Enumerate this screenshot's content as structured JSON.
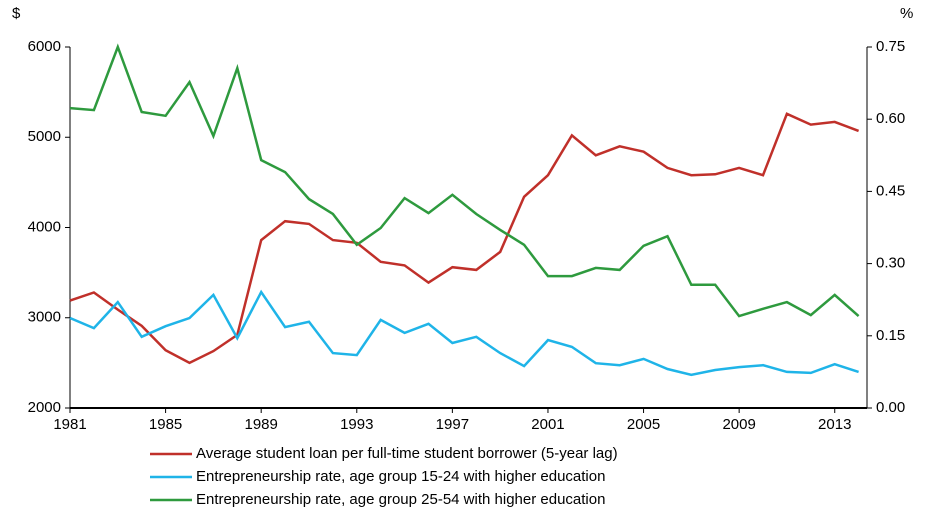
{
  "chart_data": {
    "type": "line",
    "y_unit": "$",
    "y2_unit": "%",
    "x": [
      1981,
      1982,
      1983,
      1984,
      1985,
      1986,
      1987,
      1988,
      1989,
      1990,
      1991,
      1992,
      1993,
      1994,
      1995,
      1996,
      1997,
      1998,
      1999,
      2000,
      2001,
      2002,
      2003,
      2004,
      2005,
      2006,
      2007,
      2008,
      2009,
      2010,
      2011,
      2012,
      2013,
      2014
    ],
    "xlim": [
      1981,
      2014.35
    ],
    "xticks": [
      1981,
      1985,
      1989,
      1993,
      1997,
      2001,
      2005,
      2009,
      2013
    ],
    "ylim": [
      2000,
      6000
    ],
    "yticks": [
      2000,
      3000,
      4000,
      5000,
      6000
    ],
    "y2lim": [
      0,
      0.75
    ],
    "y2ticks": [
      {
        "value": 0,
        "label": "0.00"
      },
      0.15,
      {
        "value": 0.3,
        "label": "0.30"
      },
      0.45,
      {
        "value": 0.6,
        "label": "0.60"
      },
      0.75
    ],
    "series": [
      {
        "name": "Average student loan per full-time student borrower (5-year lag)",
        "color": "#c0302a",
        "axis": "y",
        "values": [
          3190,
          3280,
          3090,
          2910,
          2640,
          2500,
          2630,
          2810,
          3860,
          4070,
          4040,
          3860,
          3830,
          3620,
          3580,
          3390,
          3560,
          3530,
          3730,
          4340,
          4580,
          5020,
          4800,
          4900,
          4840,
          4660,
          4580,
          4590,
          4660,
          4580,
          5260,
          5140,
          5170,
          5070
        ]
      },
      {
        "name": "Entrepreneurship rate, age group 15-24 with higher education",
        "color": "#1fb4e8",
        "axis": "y2",
        "values": [
          0.187,
          0.166,
          0.22,
          0.148,
          0.17,
          0.187,
          0.235,
          0.145,
          0.241,
          0.168,
          0.179,
          0.114,
          0.11,
          0.183,
          0.156,
          0.175,
          0.135,
          0.148,
          0.114,
          0.087,
          0.141,
          0.127,
          0.093,
          0.089,
          0.102,
          0.081,
          0.069,
          0.079,
          0.085,
          0.089,
          0.075,
          0.073,
          0.091,
          0.075
        ]
      },
      {
        "name": "Entrepreneurship rate, age group 25-54 with higher education",
        "color": "#2e9a3e",
        "axis": "y2",
        "values": [
          0.623,
          0.619,
          0.75,
          0.615,
          0.607,
          0.677,
          0.565,
          0.706,
          0.515,
          0.49,
          0.434,
          0.403,
          0.339,
          0.374,
          0.436,
          0.405,
          0.443,
          0.403,
          0.37,
          0.339,
          0.274,
          0.274,
          0.291,
          0.287,
          0.337,
          0.357,
          0.256,
          0.256,
          0.191,
          0.206,
          0.22,
          0.193,
          0.235,
          0.191
        ]
      }
    ]
  }
}
